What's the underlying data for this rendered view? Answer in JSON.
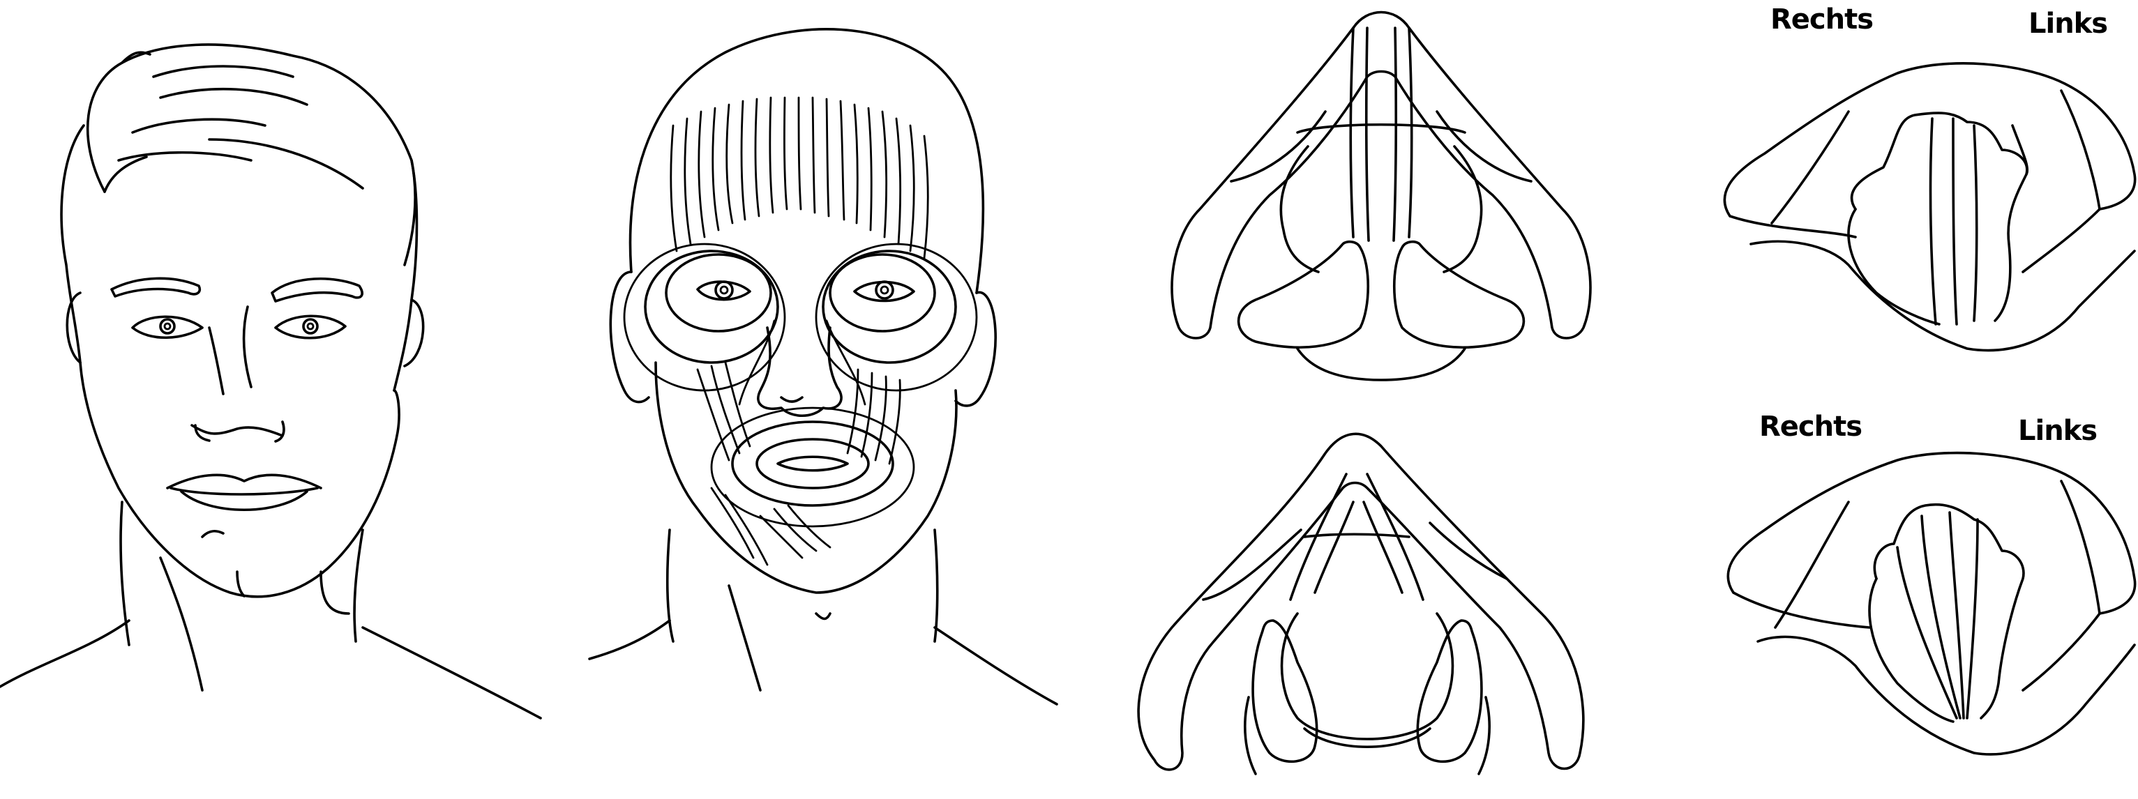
{
  "labels": {
    "top": {
      "right_side": "Rechts",
      "left_side": "Links"
    },
    "bottom": {
      "right_side": "Rechts",
      "left_side": "Links"
    }
  },
  "colors": {
    "line": "#000000",
    "background": "#ffffff"
  }
}
